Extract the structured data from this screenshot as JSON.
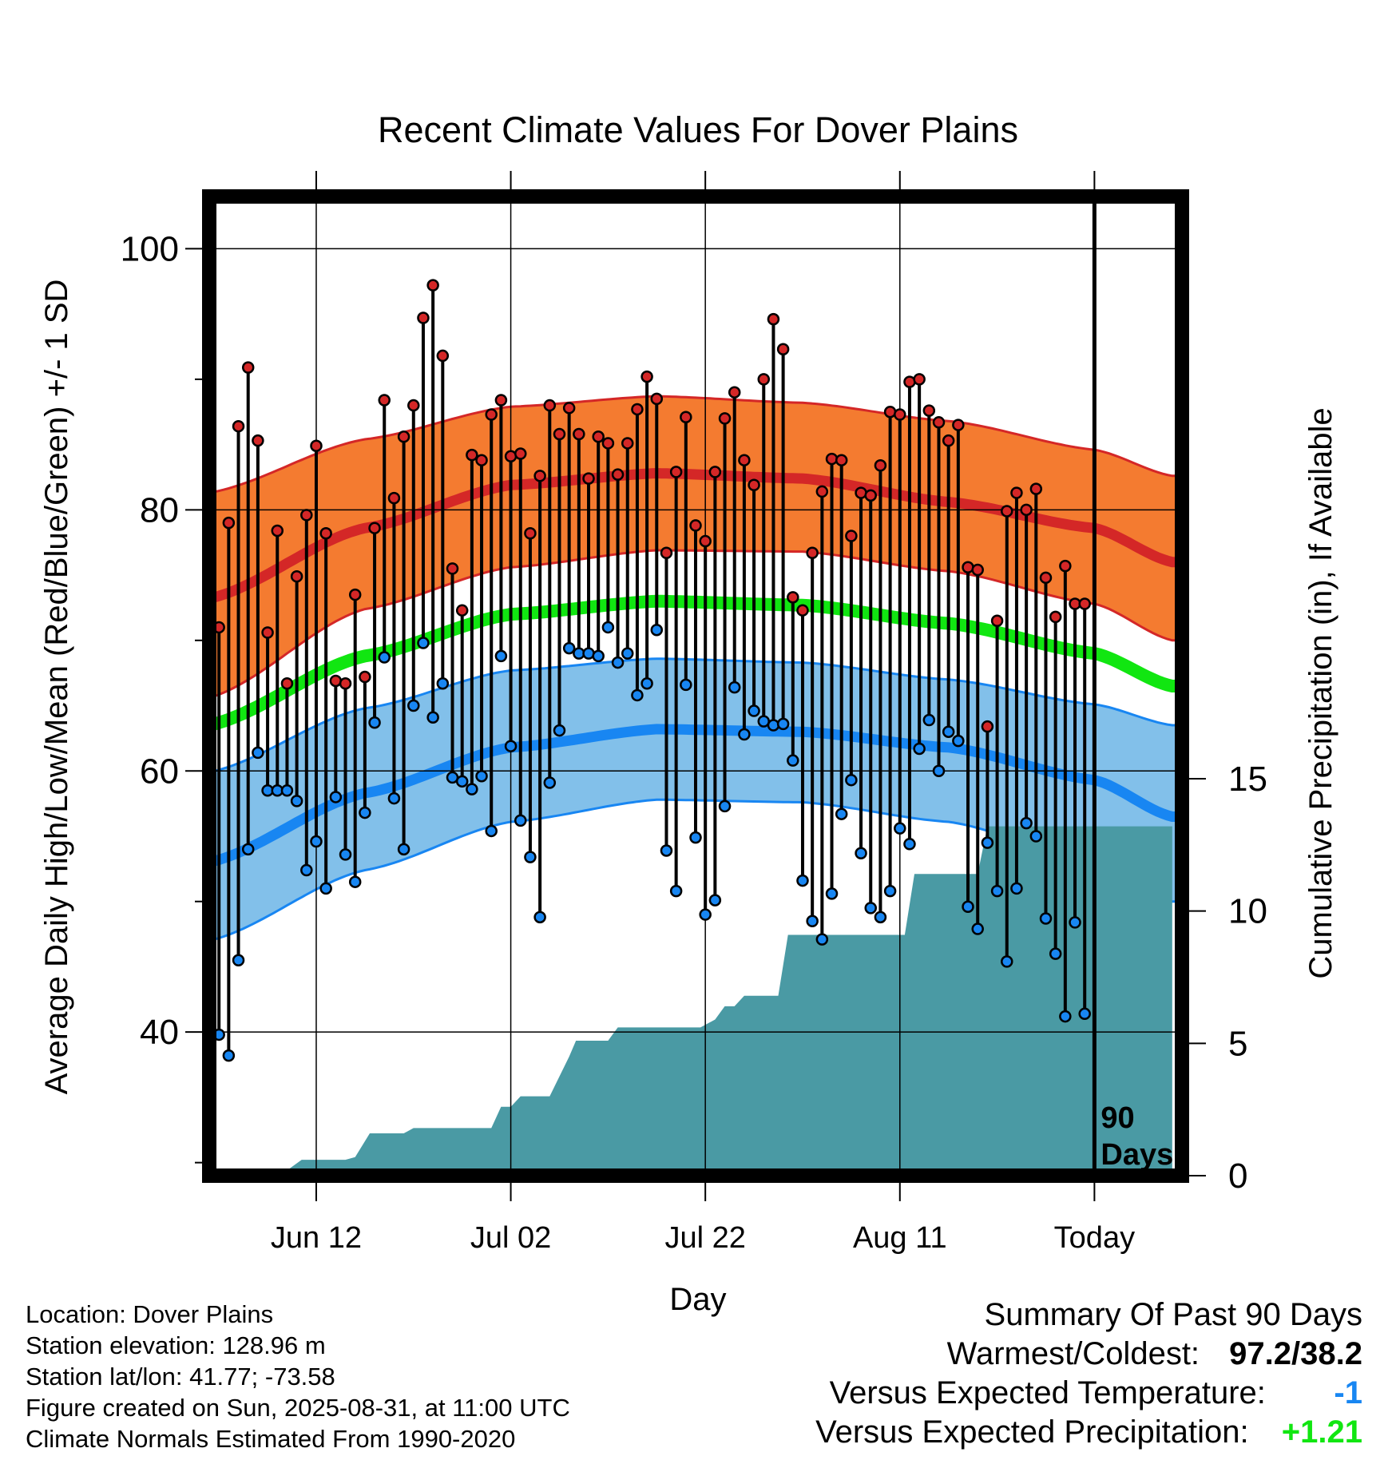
{
  "chart_data": {
    "type": "line",
    "title": "Recent Climate Values For Dover Plains",
    "xlabel": "Day",
    "ylabel": "Average Daily High/Low/Mean (Red/Blue/Green) +/- 1 SD",
    "y2label": "Cumulative Precipitation (in), If Available",
    "x_ticks": [
      {
        "day": 10,
        "label": "Jun 12"
      },
      {
        "day": 30,
        "label": "Jul 02"
      },
      {
        "day": 50,
        "label": "Jul 22"
      },
      {
        "day": 70,
        "label": "Aug 11"
      },
      {
        "day": 90,
        "label": "Today"
      }
    ],
    "xlim": [
      -1,
      99
    ],
    "ylim": [
      29,
      104
    ],
    "y_ticks": [
      40,
      60,
      80,
      100
    ],
    "y2lim": [
      0,
      37
    ],
    "y2_ticks": [
      0,
      5,
      10,
      15
    ],
    "today_marker": {
      "day": 90,
      "label_line1": "90",
      "label_line2": "Days"
    },
    "normals": {
      "high_mean": [
        [
          -1,
          73.2
        ],
        [
          15,
          78.6
        ],
        [
          30,
          81.9
        ],
        [
          45,
          82.8
        ],
        [
          60,
          82.4
        ],
        [
          75,
          80.6
        ],
        [
          90,
          78.6
        ],
        [
          98,
          76.0
        ]
      ],
      "high_upper": [
        [
          -1,
          81.3
        ],
        [
          15,
          85.4
        ],
        [
          30,
          87.9
        ],
        [
          45,
          88.7
        ],
        [
          60,
          88.2
        ],
        [
          75,
          86.8
        ],
        [
          90,
          84.6
        ],
        [
          98,
          82.6
        ]
      ],
      "high_lower": [
        [
          -1,
          65.6
        ],
        [
          15,
          72.4
        ],
        [
          30,
          75.6
        ],
        [
          45,
          76.9
        ],
        [
          60,
          76.8
        ],
        [
          75,
          75.3
        ],
        [
          90,
          72.8
        ],
        [
          98,
          70.0
        ]
      ],
      "mean": [
        [
          -1,
          63.5
        ],
        [
          15,
          68.8
        ],
        [
          30,
          72.0
        ],
        [
          45,
          73.0
        ],
        [
          60,
          72.7
        ],
        [
          75,
          71.3
        ],
        [
          90,
          69.0
        ],
        [
          98,
          66.5
        ]
      ],
      "low_mean": [
        [
          -1,
          53.0
        ],
        [
          15,
          58.3
        ],
        [
          30,
          61.8
        ],
        [
          45,
          63.2
        ],
        [
          60,
          63.0
        ],
        [
          75,
          61.8
        ],
        [
          90,
          59.3
        ],
        [
          98,
          56.5
        ]
      ],
      "low_upper": [
        [
          -1,
          59.9
        ],
        [
          15,
          64.8
        ],
        [
          30,
          67.7
        ],
        [
          45,
          68.6
        ],
        [
          60,
          68.3
        ],
        [
          75,
          67.0
        ],
        [
          90,
          65.1
        ],
        [
          98,
          63.5
        ]
      ],
      "low_lower": [
        [
          -1,
          47.0
        ],
        [
          15,
          52.4
        ],
        [
          30,
          56.1
        ],
        [
          45,
          57.8
        ],
        [
          60,
          57.6
        ],
        [
          75,
          56.1
        ],
        [
          90,
          53.0
        ],
        [
          98,
          50.0
        ]
      ]
    },
    "highs": [
      71.0,
      79.0,
      86.4,
      90.9,
      85.3,
      70.6,
      78.4,
      66.7,
      74.9,
      79.6,
      84.9,
      78.2,
      66.9,
      66.7,
      73.5,
      67.2,
      78.6,
      88.4,
      80.9,
      85.6,
      88.0,
      94.7,
      97.2,
      91.8,
      75.5,
      72.3,
      84.2,
      83.8,
      87.3,
      88.4,
      84.1,
      84.3,
      78.2,
      82.6,
      88.0,
      85.8,
      87.8,
      85.8,
      82.4,
      85.6,
      85.1,
      82.7,
      85.1,
      87.7,
      90.2,
      88.5,
      76.7,
      82.9,
      87.1,
      78.8,
      77.6,
      82.9,
      87.0,
      89.0,
      83.8,
      81.9,
      90.0,
      94.6,
      92.3,
      73.3,
      72.3,
      76.7,
      81.4,
      83.9,
      83.8,
      78.0,
      81.3,
      81.1,
      83.4,
      87.5,
      87.3,
      89.8,
      90.0,
      87.6,
      86.7,
      85.3,
      86.5,
      75.6,
      75.4,
      63.4,
      71.5,
      79.9,
      81.3,
      80.0,
      81.6,
      74.8,
      71.8,
      75.7,
      72.8,
      72.8
    ],
    "lows": [
      39.8,
      38.2,
      45.5,
      54.0,
      61.4,
      58.5,
      58.5,
      58.5,
      57.7,
      52.4,
      54.6,
      51.0,
      58.0,
      53.6,
      51.5,
      56.8,
      63.7,
      68.7,
      57.9,
      54.0,
      65.0,
      69.8,
      64.1,
      66.7,
      59.5,
      59.2,
      58.6,
      59.6,
      55.4,
      68.8,
      61.9,
      56.2,
      53.4,
      48.8,
      59.1,
      63.1,
      69.4,
      69.0,
      69.0,
      68.8,
      71.0,
      68.3,
      69.0,
      65.8,
      66.7,
      70.8,
      53.9,
      50.8,
      66.6,
      54.9,
      49.0,
      50.1,
      57.3,
      66.4,
      62.8,
      64.6,
      63.8,
      63.5,
      63.6,
      60.8,
      51.6,
      48.5,
      47.1,
      50.6,
      56.7,
      59.3,
      53.7,
      49.5,
      48.8,
      50.8,
      55.6,
      54.4,
      61.7,
      63.9,
      60.0,
      63.0,
      62.3,
      49.6,
      47.9,
      54.5,
      50.8,
      45.4,
      51.0,
      56.0,
      55.0,
      48.7,
      46.0,
      41.2,
      48.4,
      41.4
    ],
    "precip_cumulative": [
      [
        -1,
        0.0
      ],
      [
        3.5,
        0.0
      ],
      [
        4.5,
        0.2
      ],
      [
        7,
        0.2
      ],
      [
        8.5,
        0.6
      ],
      [
        13,
        0.6
      ],
      [
        14,
        0.7
      ],
      [
        15.5,
        1.6
      ],
      [
        19,
        1.6
      ],
      [
        20,
        1.8
      ],
      [
        28,
        1.8
      ],
      [
        29,
        2.6
      ],
      [
        30,
        2.6
      ],
      [
        31,
        3.0
      ],
      [
        34,
        3.0
      ],
      [
        36,
        4.5
      ],
      [
        36.7,
        5.1
      ],
      [
        40,
        5.1
      ],
      [
        41,
        5.6
      ],
      [
        49.5,
        5.6
      ],
      [
        51,
        5.9
      ],
      [
        52,
        6.4
      ],
      [
        53,
        6.4
      ],
      [
        54,
        6.8
      ],
      [
        57.5,
        6.8
      ],
      [
        58.5,
        9.1
      ],
      [
        70.5,
        9.1
      ],
      [
        71.5,
        11.4
      ],
      [
        78,
        11.4
      ],
      [
        79,
        13.2
      ],
      [
        98,
        13.2
      ]
    ],
    "precip_color": "#4a9aa4",
    "colors": {
      "high_band": "#f47b30",
      "high_line": "#d42727",
      "mean_line": "#11e611",
      "low_band": "#82c0ea",
      "low_line": "#1886f2",
      "high_point": "#d42727",
      "low_point": "#1886f2"
    }
  },
  "station_info": {
    "location": "Location: Dover Plains",
    "elevation": "Station elevation: 128.96 m",
    "latlon": "Station lat/lon: 41.77; -73.58",
    "created": "Figure created on Sun, 2025-08-31, at 11:00 UTC",
    "normals_period": "Climate Normals Estimated From 1990-2020"
  },
  "summary": {
    "title": "Summary Of Past 90 Days",
    "warm_cold_label": "Warmest/Coldest:",
    "warm_cold_value": "97.2/38.2",
    "temp_label": "Versus Expected Temperature:",
    "temp_value": "-1",
    "temp_color": "#1886f2",
    "precip_label": "Versus Expected Precipitation:",
    "precip_value": "+1.21",
    "precip_value_color": "#11e611"
  }
}
